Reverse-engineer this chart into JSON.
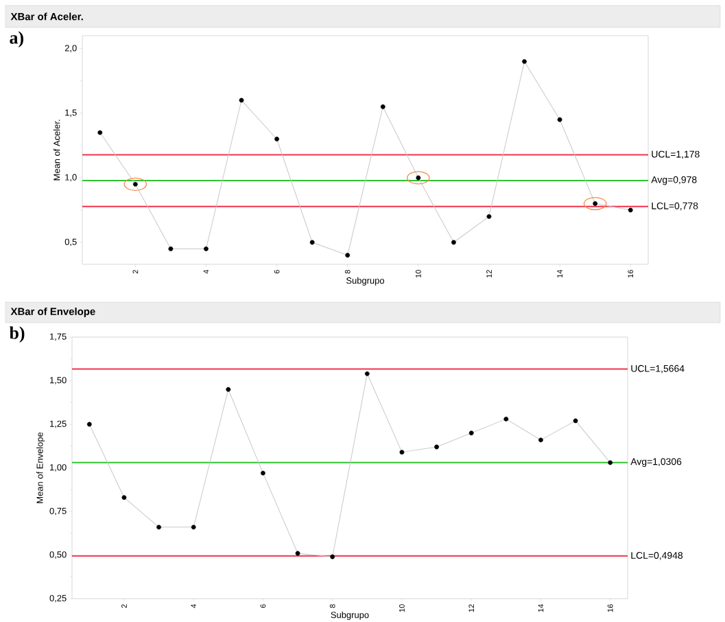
{
  "chart_data": [
    {
      "type": "line",
      "title": "XBar of Aceler.",
      "xlabel": "Subgrupo",
      "ylabel": "Mean of Aceler.",
      "annotations": [
        "a)"
      ],
      "x": [
        1,
        2,
        3,
        4,
        5,
        6,
        7,
        8,
        9,
        10,
        11,
        12,
        13,
        14,
        15,
        16
      ],
      "series": [
        {
          "color": "#c8c8c8",
          "marker": "none",
          "values": [
            1.35,
            0.95,
            0.45,
            0.45,
            1.6,
            1.3,
            0.5,
            0.4,
            1.55,
            1.0,
            0.5,
            0.7,
            1.9,
            1.45,
            0.8,
            0.75
          ]
        },
        {
          "type": "scatter",
          "color": "#000000",
          "marker": "circle",
          "values": [
            1.35,
            0.95,
            0.45,
            0.45,
            1.6,
            1.3,
            0.5,
            0.4,
            1.55,
            1.0,
            0.5,
            0.7,
            1.9,
            1.45,
            0.8,
            0.75
          ]
        },
        {
          "type": "scatter",
          "color": "#f58a4b",
          "marker": "circle",
          "x": [
            2,
            10,
            15
          ],
          "values": [
            0.95,
            1.0,
            0.8
          ]
        }
      ],
      "ref_lines": [
        {
          "axis": "y",
          "value": 1.178,
          "label": "UCL=1,178",
          "color": "#f0324b"
        },
        {
          "axis": "y",
          "value": 0.978,
          "label": "Avg=0,978",
          "color": "#2ec32e"
        },
        {
          "axis": "y",
          "value": 0.778,
          "label": "LCL=0,778",
          "color": "#f0324b"
        }
      ],
      "xlim": [
        0.5,
        16.5
      ],
      "xticks": [
        2,
        4,
        6,
        8,
        10,
        12,
        14,
        16
      ],
      "ylim": [
        0.33,
        2.1
      ],
      "yticks": [
        {
          "value": 0.5,
          "label": "0,5"
        },
        {
          "value": 1.0,
          "label": "1,0"
        },
        {
          "value": 1.5,
          "label": "1,5"
        },
        {
          "value": 2.0,
          "label": "2,0"
        }
      ],
      "grid": false
    },
    {
      "type": "line",
      "title": "XBar of Envelope",
      "xlabel": "Subgrupo",
      "ylabel": "Mean of Envelope",
      "annotations": [
        "b)"
      ],
      "x": [
        1,
        2,
        3,
        4,
        5,
        6,
        7,
        8,
        9,
        10,
        11,
        12,
        13,
        14,
        15,
        16
      ],
      "series": [
        {
          "color": "#c8c8c8",
          "marker": "none",
          "values": [
            1.25,
            0.83,
            0.66,
            0.66,
            1.45,
            0.97,
            0.51,
            0.49,
            1.54,
            1.09,
            1.12,
            1.2,
            1.28,
            1.16,
            1.27,
            1.03
          ]
        },
        {
          "type": "scatter",
          "color": "#000000",
          "marker": "circle",
          "values": [
            1.25,
            0.83,
            0.66,
            0.66,
            1.45,
            0.97,
            0.51,
            0.49,
            1.54,
            1.09,
            1.12,
            1.2,
            1.28,
            1.16,
            1.27,
            1.03
          ]
        }
      ],
      "ref_lines": [
        {
          "axis": "y",
          "value": 1.5664,
          "label": "UCL=1,5664",
          "color": "#f0324b"
        },
        {
          "axis": "y",
          "value": 1.0306,
          "label": "Avg=1,0306",
          "color": "#2ec32e"
        },
        {
          "axis": "y",
          "value": 0.4948,
          "label": "LCL=0,4948",
          "color": "#f0324b"
        }
      ],
      "xlim": [
        0.5,
        16.5
      ],
      "xticks": [
        2,
        4,
        6,
        8,
        10,
        12,
        14,
        16
      ],
      "ylim": [
        0.25,
        1.75
      ],
      "yticks": [
        {
          "value": 0.25,
          "label": "0,25"
        },
        {
          "value": 0.5,
          "label": "0,50"
        },
        {
          "value": 0.75,
          "label": "0,75"
        },
        {
          "value": 1.0,
          "label": "1,00"
        },
        {
          "value": 1.25,
          "label": "1,25"
        },
        {
          "value": 1.5,
          "label": "1,50"
        },
        {
          "value": 1.75,
          "label": "1,75"
        }
      ],
      "grid": false
    }
  ]
}
